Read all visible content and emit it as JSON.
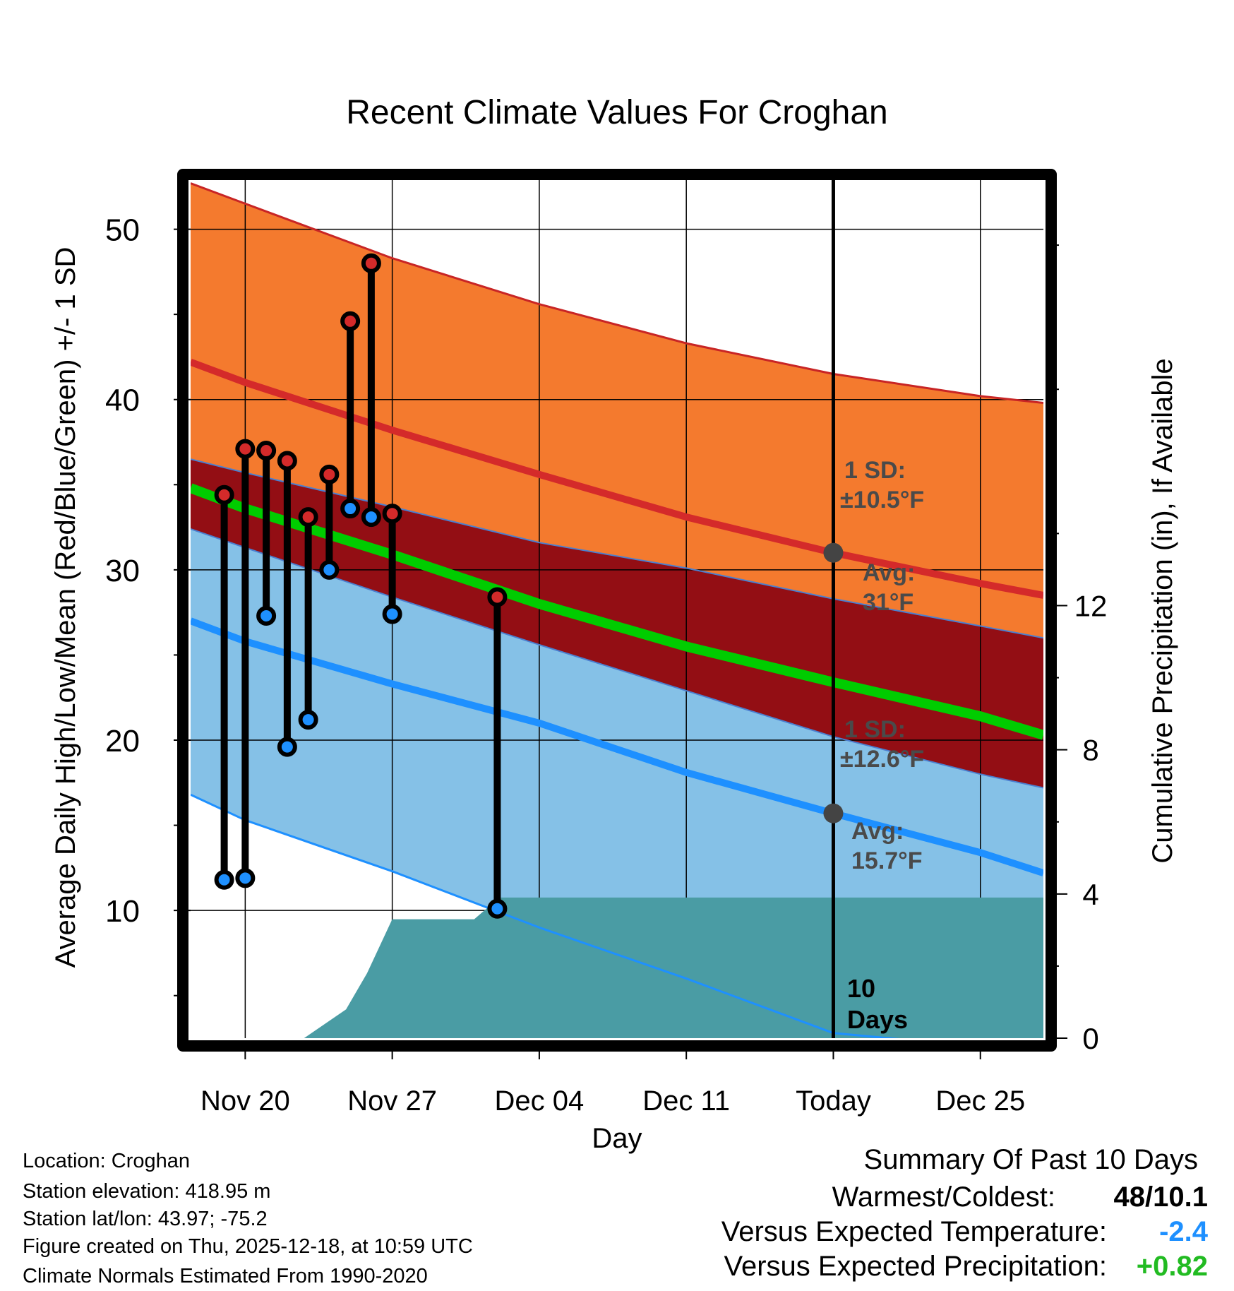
{
  "chart_data": {
    "type": "line",
    "title": "Recent Climate Values For Croghan",
    "xlabel": "Day",
    "ylabel": "Average Daily High/Low/Mean (Red/Blue/Green) +/- 1 SD",
    "y2label": "Cumulative Precipitation (in), If Available",
    "x_tick_labels": [
      "Nov 20",
      "Nov 27",
      "Dec 04",
      "Dec 11",
      "Today",
      "Dec 25"
    ],
    "x_tick_days": [
      0,
      7,
      14,
      21,
      28,
      35
    ],
    "x_range": [
      -2.6,
      38.0
    ],
    "y_ticks": [
      10,
      20,
      30,
      40,
      50
    ],
    "ylim": [
      2.5,
      53.3
    ],
    "y2_ticks": [
      0,
      4,
      8,
      12
    ],
    "y2lim": [
      0,
      24.0
    ],
    "today_day": 28,
    "normals_days": [
      -2.6,
      0,
      7,
      14,
      21,
      28,
      35,
      38
    ],
    "series": [
      {
        "name": "Average High + 1 SD",
        "color": "#c82525",
        "values": [
          52.7,
          51.5,
          48.3,
          45.6,
          43.3,
          41.5,
          40.2,
          39.8
        ]
      },
      {
        "name": "Average High",
        "color": "#d42a2a",
        "values": [
          42.2,
          41.0,
          38.2,
          35.6,
          33.1,
          31.0,
          29.2,
          28.5
        ]
      },
      {
        "name": "Average High - 1 SD",
        "color": "#4a7fd0",
        "values": [
          36.5,
          35.7,
          33.7,
          31.6,
          30.1,
          28.3,
          26.7,
          26.0
        ]
      },
      {
        "name": "Average Mean",
        "color": "#00cc00",
        "values": [
          34.8,
          33.6,
          30.9,
          28.0,
          25.5,
          23.4,
          21.4,
          20.3
        ]
      },
      {
        "name": "Average Low + 1 SD",
        "color": "#4a7fd0",
        "values": [
          32.4,
          31.3,
          28.4,
          25.6,
          22.9,
          20.2,
          18.0,
          17.2
        ]
      },
      {
        "name": "Average Low",
        "color": "#1e90ff",
        "values": [
          27.0,
          25.8,
          23.3,
          21.0,
          18.1,
          15.7,
          13.4,
          12.2
        ]
      },
      {
        "name": "Average Low - 1 SD",
        "color": "#1e90ff",
        "values": [
          16.8,
          15.3,
          12.3,
          9.0,
          6.0,
          2.8,
          2.0,
          2.0
        ]
      }
    ],
    "observations": {
      "days": [
        -1,
        0,
        1,
        2,
        3,
        4,
        5,
        6,
        7,
        12
      ],
      "highs": [
        34.4,
        37.1,
        37.0,
        36.4,
        33.1,
        35.6,
        44.6,
        48.0,
        33.3,
        28.4
      ],
      "lows": [
        11.8,
        11.9,
        27.3,
        19.6,
        21.2,
        30.0,
        33.6,
        33.1,
        27.4,
        10.1
      ]
    },
    "precipitation": {
      "name": "Cumulative Precipitation",
      "color": "#4a9ca4",
      "days": [
        -2.6,
        2.8,
        4.8,
        5.8,
        7.0,
        10.9,
        12.1,
        38.0
      ],
      "values": [
        0,
        0,
        0.8,
        1.8,
        3.3,
        3.3,
        3.9,
        3.9
      ]
    },
    "annotations": {
      "high_sd": "1 SD:",
      "high_sd_value": "±10.5°F",
      "high_avg": "Avg:",
      "high_avg_value": "31°F",
      "low_sd": "1 SD:",
      "low_sd_value": "±12.6°F",
      "low_avg": "Avg:",
      "low_avg_value": "15.7°F",
      "window_num": "10",
      "window_label": "Days"
    }
  },
  "info": {
    "location": "Location: Croghan",
    "elevation": "Station elevation: 418.95 m",
    "latlon": "Station lat/lon: 43.97; -75.2",
    "created": "Figure created on Thu, 2025-12-18, at 10:59 UTC",
    "normals": "Climate Normals Estimated From 1990-2020"
  },
  "summary": {
    "title": "Summary Of Past 10 Days",
    "warmest_label": "Warmest/Coldest:",
    "warmest_value": "48/10.1",
    "temp_label": "Versus Expected Temperature:",
    "temp_value": "-2.4",
    "temp_color": "#1e90ff",
    "precip_label": "Versus Expected Precipitation:",
    "precip_value": "+0.82",
    "precip_color": "#22bb22"
  }
}
